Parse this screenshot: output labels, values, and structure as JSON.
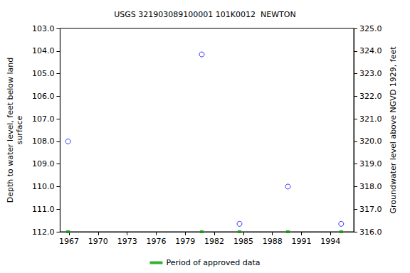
{
  "chart_data": {
    "type": "scatter",
    "title": "USGS 321903089100001 101K0012  NEWTON",
    "y_label": "Depth to water level, feet below land\nsurface",
    "y2_label": "Groundwater level above NGVD 1929, feet",
    "xlim": [
      1966.07,
      1996.4
    ],
    "xticks": [
      1967,
      1970,
      1973,
      1976,
      1979,
      1982,
      1985,
      1988,
      1991,
      1994
    ],
    "ylim": [
      103,
      112
    ],
    "yticks": [
      {
        "value": 103,
        "label": "103.0"
      },
      {
        "value": 104,
        "label": "104.0"
      },
      {
        "value": 105,
        "label": "105.0"
      },
      {
        "value": 106,
        "label": "106.0"
      },
      {
        "value": 107,
        "label": "107.0"
      },
      {
        "value": 108,
        "label": "108.0"
      },
      {
        "value": 109,
        "label": "109.0"
      },
      {
        "value": 110,
        "label": "110.0"
      },
      {
        "value": 111,
        "label": "111.0"
      },
      {
        "value": 112,
        "label": "112.0"
      }
    ],
    "y2lim": [
      316,
      325
    ],
    "y2ticks": [
      {
        "value": 316,
        "label": "316.0"
      },
      {
        "value": 317,
        "label": "317.0"
      },
      {
        "value": 318,
        "label": "318.0"
      },
      {
        "value": 319,
        "label": "319.0"
      },
      {
        "value": 320,
        "label": "320.0"
      },
      {
        "value": 321,
        "label": "321.0"
      },
      {
        "value": 322,
        "label": "322.0"
      },
      {
        "value": 323,
        "label": "323.0"
      },
      {
        "value": 324,
        "label": "324.0"
      },
      {
        "value": 325,
        "label": "325.0"
      }
    ],
    "grid": false,
    "legend": "bottom",
    "series": [
      {
        "color": "#0000ff",
        "marker": "circle_open",
        "x": [
          1966.9,
          1980.7,
          1984.6,
          1989.6,
          1995.1
        ],
        "values": [
          108.0,
          104.15,
          111.65,
          110.0,
          111.65
        ]
      },
      {
        "name": "Period of approved data",
        "color": "#00a000",
        "marker": "square",
        "x": [
          1966.9,
          1980.7,
          1984.6,
          1989.6,
          1995.1
        ],
        "values": [
          112,
          112,
          112,
          112,
          112
        ]
      }
    ]
  }
}
